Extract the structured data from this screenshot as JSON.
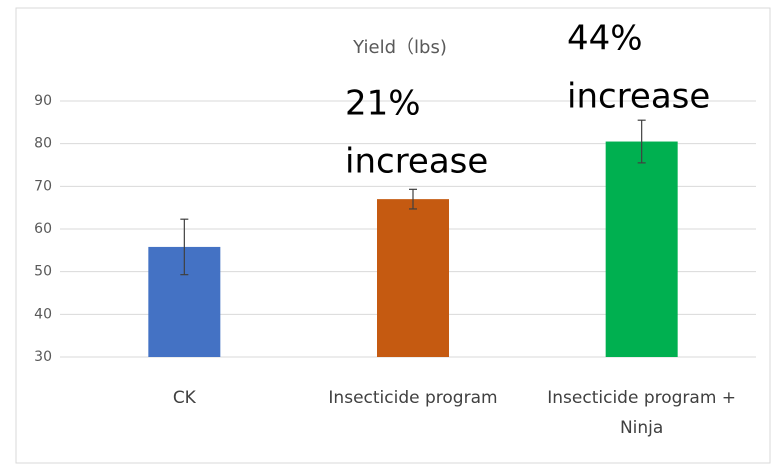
{
  "chart_data": {
    "type": "bar",
    "title": "Yield（lbs)",
    "categories": [
      "CK",
      "Insecticide program",
      "Insecticide program + Ninja"
    ],
    "values": [
      55.8,
      67,
      80.5
    ],
    "errors": [
      6.5,
      2.3,
      5
    ],
    "colors": [
      "#4472c4",
      "#c55a11",
      "#00b050"
    ],
    "annotations": [
      [
        "21%",
        "increase"
      ],
      [
        "44%",
        "increase"
      ]
    ],
    "ylim": [
      30,
      90
    ],
    "yticks": [
      30,
      40,
      50,
      60,
      70,
      80,
      90
    ],
    "grid": true
  }
}
